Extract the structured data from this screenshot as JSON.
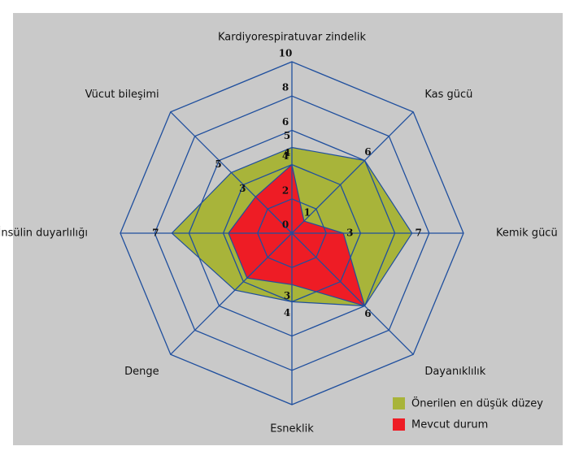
{
  "chart_data": {
    "type": "radar",
    "categories": [
      "Kardiyorespiratuvar zindelik",
      "Kas gücü",
      "Kemik gücü",
      "Dayanıklılık",
      "Esneklik",
      "Denge",
      "İnsülin duyarlılığı",
      "Vücut bileşimi"
    ],
    "rlim": [
      0,
      10
    ],
    "rticks": [
      0,
      2,
      4,
      6,
      8,
      10
    ],
    "grid_color": "#1f4f9e",
    "series": [
      {
        "name": "Önerilen en düşük düzey",
        "color": "#a8b43a",
        "values": [
          5,
          6,
          7,
          6,
          4,
          4.7,
          7,
          5
        ],
        "value_labels": [
          "5",
          "6",
          "7",
          "6",
          "4",
          null,
          "7",
          "5"
        ]
      },
      {
        "name": "Mevcut durum",
        "color": "#ee1c25",
        "values": [
          4,
          1,
          3,
          6,
          3,
          3.7,
          3.7,
          3
        ],
        "value_labels": [
          "4",
          "1",
          "3",
          null,
          "3",
          null,
          null,
          "3"
        ]
      }
    ]
  }
}
